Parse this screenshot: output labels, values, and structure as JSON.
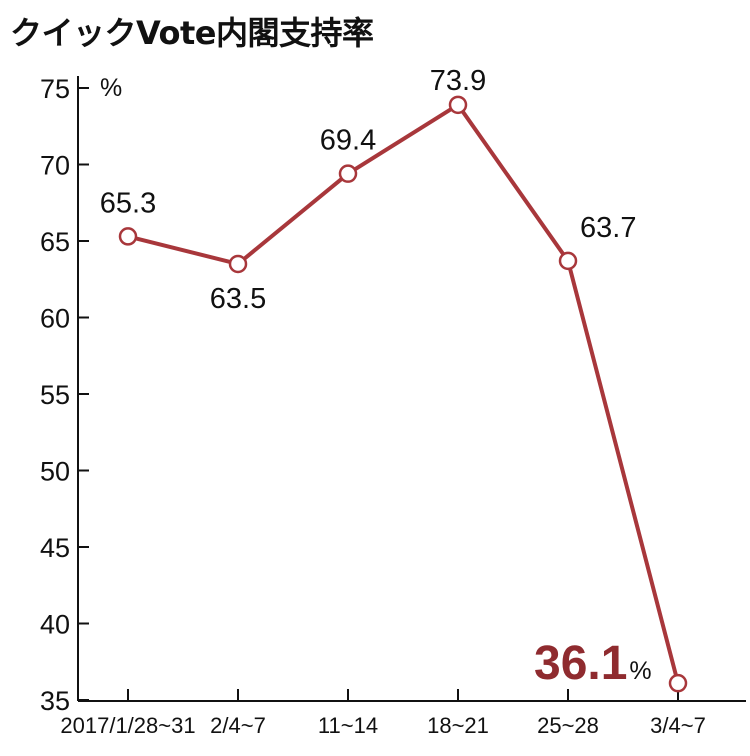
{
  "chart_data": {
    "type": "line",
    "title": "クイックVote内閣支持率",
    "y_unit": "%",
    "ylim": [
      35,
      75
    ],
    "yticks": [
      35,
      40,
      45,
      50,
      55,
      60,
      65,
      70,
      75
    ],
    "categories": [
      "2017/1/28~31",
      "2/4~7",
      "11~14",
      "18~21",
      "25~28",
      "3/4~7"
    ],
    "series": [
      {
        "values": [
          65.3,
          63.5,
          69.4,
          73.9,
          63.7,
          36.1
        ]
      }
    ],
    "data_labels": [
      "65.3",
      "63.5",
      "69.4",
      "73.9",
      "63.7",
      "36.1"
    ],
    "highlight_unit": "%",
    "grid": false,
    "colors": {
      "line": "#a8373b",
      "highlight_text": "#8f2b2f",
      "marker_fill": "#ffffff",
      "axis": "#111111"
    }
  }
}
